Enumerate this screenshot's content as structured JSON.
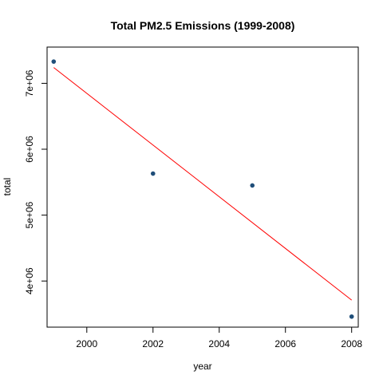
{
  "chart_data": {
    "type": "scatter",
    "title": "Total PM2.5 Emissions (1999-2008)",
    "xlabel": "year",
    "ylabel": "total",
    "xlim": [
      1998.8,
      2008.2
    ],
    "ylim": [
      3300000,
      7550000
    ],
    "x_ticks": [
      2000,
      2002,
      2004,
      2006,
      2008
    ],
    "x_tick_labels": [
      "2000",
      "2002",
      "2004",
      "2006",
      "2008"
    ],
    "y_ticks": [
      4000000,
      5000000,
      6000000,
      7000000
    ],
    "y_tick_labels": [
      "4e+06",
      "5e+06",
      "6e+06",
      "7e+06"
    ],
    "series": [
      {
        "x": [
          1999,
          2002,
          2005,
          2008
        ],
        "y": [
          7330000,
          5630000,
          5450000,
          3460000
        ]
      }
    ],
    "regression_line": {
      "x": [
        1999,
        2008
      ],
      "y": [
        7240000,
        3710000
      ]
    },
    "grid": false,
    "point_color": "#1f4e79",
    "line_color": "#ff0000"
  }
}
